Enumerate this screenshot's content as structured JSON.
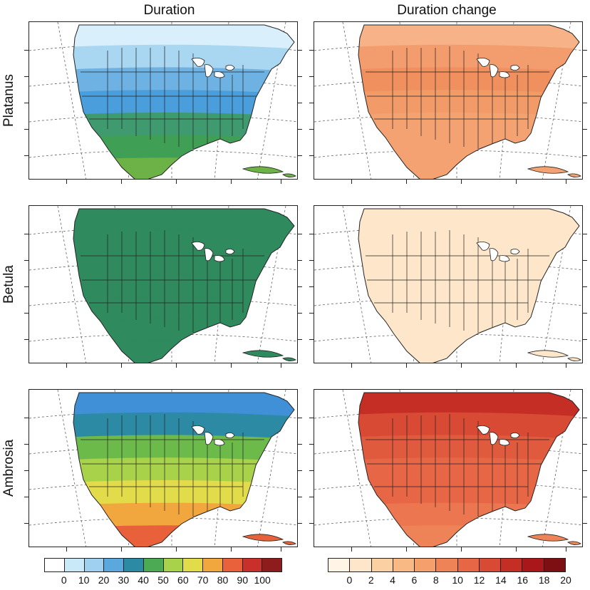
{
  "columns": [
    "Duration",
    "Duration change"
  ],
  "rows": [
    "Platanus",
    "Betula",
    "Ambrosia"
  ],
  "colorbars": {
    "duration": {
      "colors": [
        "#ffffff",
        "#c9e8f8",
        "#9fd0ef",
        "#5aa8dd",
        "#2d8aa4",
        "#4caa55",
        "#a8d24a",
        "#e3dc4a",
        "#f2a63e",
        "#e8613a",
        "#c9302c",
        "#8e1c1c"
      ],
      "labels": [
        "0",
        "10",
        "20",
        "30",
        "40",
        "50",
        "60",
        "70",
        "80",
        "90",
        "100"
      ]
    },
    "change": {
      "colors": [
        "#fff4e6",
        "#fde6c9",
        "#fbd1a4",
        "#f8b985",
        "#f59f6c",
        "#ef8358",
        "#e66645",
        "#d94a34",
        "#c52e25",
        "#a9171a",
        "#7d0e12"
      ],
      "labels": [
        "0",
        "2",
        "4",
        "6",
        "8",
        "10",
        "12",
        "14",
        "16",
        "18",
        "20"
      ]
    }
  },
  "panels": [
    {
      "id": "platanus-duration",
      "bands": [
        "#d9effb",
        "#a9d6f1",
        "#6eb2e3",
        "#4a9edb",
        "#3f9a70",
        "#3e9f55",
        "#6cb247"
      ]
    },
    {
      "id": "platanus-change",
      "bands": [
        "#f7b288",
        "#f39d6e",
        "#f0905e",
        "#f29a68",
        "#f4a272",
        "#f4a272",
        "#f4a272"
      ]
    },
    {
      "id": "betula-duration",
      "bands": [
        "#2f8a5e",
        "#2f8a5e",
        "#2f8a5e",
        "#2f8a5e",
        "#2f8a5e",
        "#2f8a5e",
        "#2f8a5e"
      ]
    },
    {
      "id": "betula-change",
      "bands": [
        "#fde6c9",
        "#fde6c9",
        "#fde6c9",
        "#fde6c9",
        "#fde6c9",
        "#fde6c9",
        "#fde6c9"
      ]
    },
    {
      "id": "ambrosia-duration",
      "bands": [
        "#3f90d6",
        "#2d8aa4",
        "#6cbb4a",
        "#a8d24a",
        "#e3dc4a",
        "#f2a63e",
        "#e8613a"
      ]
    },
    {
      "id": "ambrosia-change",
      "bands": [
        "#c52e25",
        "#d94a34",
        "#e05a3d",
        "#e66645",
        "#e66645",
        "#ec764f",
        "#ef8358"
      ]
    }
  ]
}
